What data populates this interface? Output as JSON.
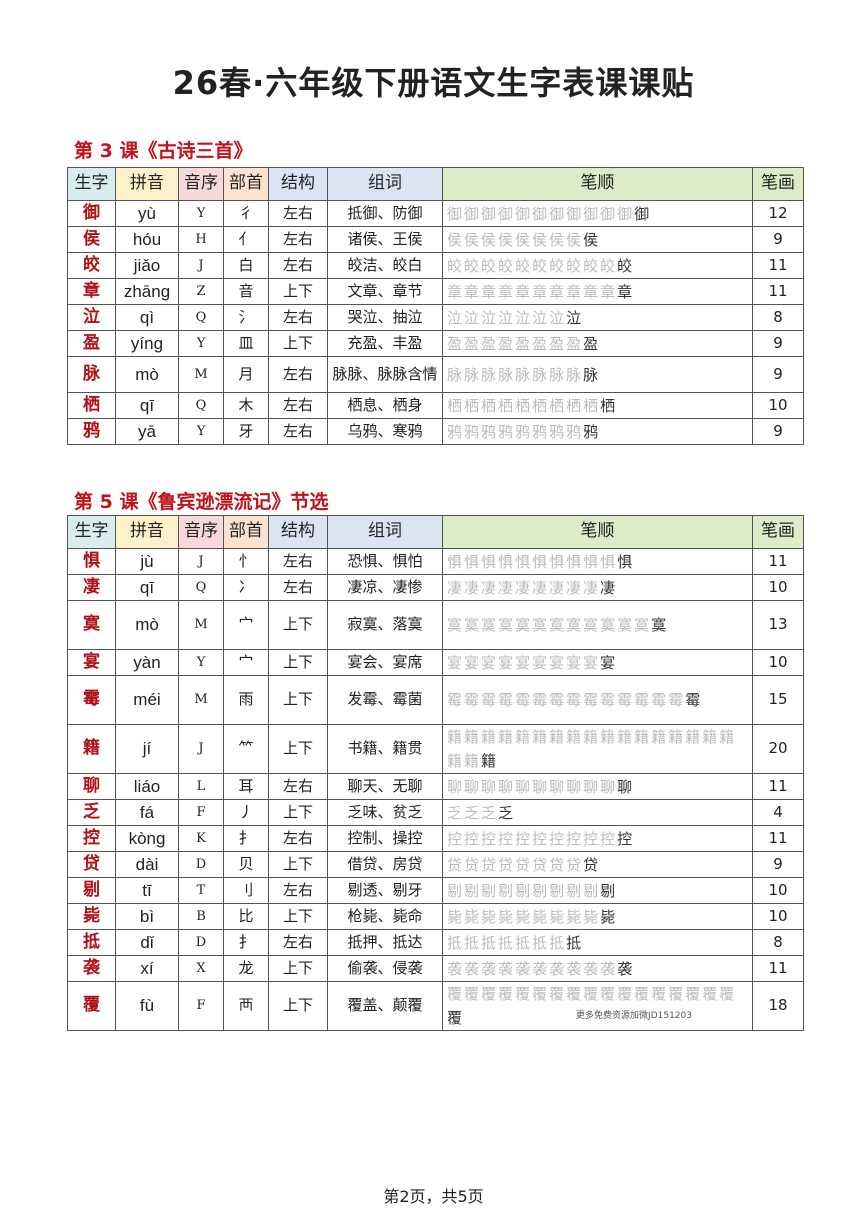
{
  "title": "26春·六年级下册语文生字表课课贴",
  "headers": [
    "生字",
    "拼音",
    "音序",
    "部首",
    "结构",
    "组词",
    "笔顺",
    "笔画"
  ],
  "header_colors": [
    "#d8eeee",
    "#fdf1cb",
    "#f8d8dc",
    "#fde3cf",
    "#dce4f3",
    "#dce4f3",
    "#dcecc9",
    "#dcecc9"
  ],
  "lesson1": {
    "title": "第 3 课《古诗三首》",
    "rows": [
      [
        "御",
        "yù",
        "Y",
        "彳",
        "左右",
        "抵御、防御",
        "12"
      ],
      [
        "侯",
        "hóu",
        "H",
        "亻",
        "左右",
        "诸侯、王侯",
        "9"
      ],
      [
        "皎",
        "jiǎo",
        "J",
        "白",
        "左右",
        "皎洁、皎白",
        "11"
      ],
      [
        "章",
        "zhāng",
        "Z",
        "音",
        "上下",
        "文章、章节",
        "11"
      ],
      [
        "泣",
        "qì",
        "Q",
        "氵",
        "左右",
        "哭泣、抽泣",
        "8"
      ],
      [
        "盈",
        "yíng",
        "Y",
        "皿",
        "上下",
        "充盈、丰盈",
        "9"
      ],
      [
        "脉",
        "mò",
        "M",
        "月",
        "左右",
        "脉脉、脉脉含情",
        "9"
      ],
      [
        "栖",
        "qī",
        "Q",
        "木",
        "左右",
        "栖息、栖身",
        "10"
      ],
      [
        "鸦",
        "yā",
        "Y",
        "牙",
        "左右",
        "乌鸦、寒鸦",
        "9"
      ]
    ]
  },
  "lesson2": {
    "title": "第 5 课《鲁宾逊漂流记》节选",
    "rows": [
      [
        "惧",
        "jù",
        "J",
        "忄",
        "左右",
        "恐惧、惧怕",
        "11"
      ],
      [
        "凄",
        "qī",
        "Q",
        "冫",
        "左右",
        "凄凉、凄惨",
        "10"
      ],
      [
        "寞",
        "mò",
        "M",
        "宀",
        "上下",
        "寂寞、落寞",
        "13"
      ],
      [
        "宴",
        "yàn",
        "Y",
        "宀",
        "上下",
        "宴会、宴席",
        "10"
      ],
      [
        "霉",
        "méi",
        "M",
        "雨",
        "上下",
        "发霉、霉菌",
        "15"
      ],
      [
        "籍",
        "jí",
        "J",
        "⺮",
        "上下",
        "书籍、籍贯",
        "20"
      ],
      [
        "聊",
        "liáo",
        "L",
        "耳",
        "左右",
        "聊天、无聊",
        "11"
      ],
      [
        "乏",
        "fá",
        "F",
        "丿",
        "上下",
        "乏味、贫乏",
        "4"
      ],
      [
        "控",
        "kòng",
        "K",
        "扌",
        "左右",
        "控制、操控",
        "11"
      ],
      [
        "贷",
        "dài",
        "D",
        "贝",
        "上下",
        "借贷、房贷",
        "9"
      ],
      [
        "剔",
        "tī",
        "T",
        "刂",
        "左右",
        "剔透、剔牙",
        "10"
      ],
      [
        "毙",
        "bì",
        "B",
        "比",
        "上下",
        "枪毙、毙命",
        "10"
      ],
      [
        "抵",
        "dǐ",
        "D",
        "扌",
        "左右",
        "抵押、抵达",
        "8"
      ],
      [
        "袭",
        "xí",
        "X",
        "龙",
        "上下",
        "偷袭、侵袭",
        "11"
      ],
      [
        "覆",
        "fù",
        "F",
        "襾",
        "上下",
        "覆盖、颠覆",
        "18"
      ]
    ]
  },
  "watermark": "更多免费资源加微JD151203",
  "footer": "第2页，共5页"
}
